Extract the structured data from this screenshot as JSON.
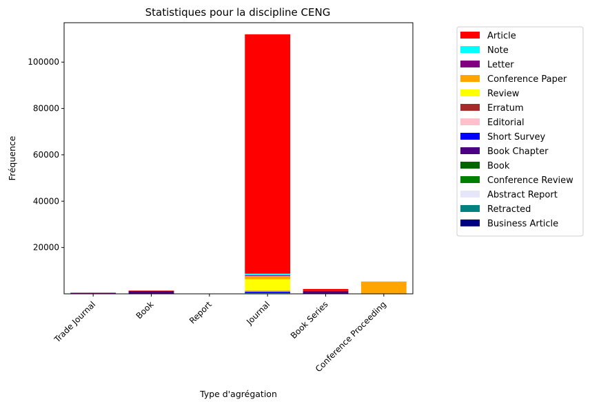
{
  "chart_data": {
    "type": "bar",
    "stacked": true,
    "title": "Statistiques pour la discipline CENG",
    "xlabel": "Type d'agrégation",
    "ylabel": "Fréquence",
    "categories": [
      "Trade Journal",
      "Book",
      "Report",
      "Journal",
      "Book Series",
      "Conference Proceeding"
    ],
    "ylim": [
      0,
      117000
    ],
    "yticks": [
      20000,
      40000,
      60000,
      80000,
      100000
    ],
    "ytick_labels": [
      "20000",
      "40000",
      "60000",
      "80000",
      "100000"
    ],
    "grid": false,
    "legend_position": "outside right",
    "series": [
      {
        "name": "Business Article",
        "color": "#000080",
        "values": [
          0,
          0,
          0,
          300,
          0,
          0
        ]
      },
      {
        "name": "Retracted",
        "color": "#008080",
        "values": [
          0,
          0,
          0,
          50,
          0,
          0
        ]
      },
      {
        "name": "Abstract Report",
        "color": "#e6e6fa",
        "values": [
          0,
          0,
          0,
          50,
          0,
          0
        ]
      },
      {
        "name": "Conference Review",
        "color": "#008000",
        "values": [
          0,
          0,
          0,
          100,
          0,
          0
        ]
      },
      {
        "name": "Book",
        "color": "#006400",
        "values": [
          0,
          100,
          0,
          0,
          100,
          0
        ]
      },
      {
        "name": "Book Chapter",
        "color": "#4b0082",
        "values": [
          0,
          1200,
          0,
          100,
          1100,
          0
        ]
      },
      {
        "name": "Short Survey",
        "color": "#0000ff",
        "values": [
          0,
          0,
          0,
          300,
          0,
          0
        ]
      },
      {
        "name": "Editorial",
        "color": "#ffc0cb",
        "values": [
          0,
          0,
          0,
          200,
          0,
          0
        ]
      },
      {
        "name": "Erratum",
        "color": "#a52a2a",
        "values": [
          0,
          0,
          0,
          200,
          100,
          0
        ]
      },
      {
        "name": "Review",
        "color": "#ffff00",
        "values": [
          0,
          0,
          0,
          5000,
          0,
          0
        ]
      },
      {
        "name": "Conference Paper",
        "color": "#ffa500",
        "values": [
          0,
          0,
          0,
          1400,
          0,
          5300
        ]
      },
      {
        "name": "Letter",
        "color": "#800080",
        "values": [
          400,
          0,
          0,
          300,
          0,
          0
        ]
      },
      {
        "name": "Note",
        "color": "#00ffff",
        "values": [
          0,
          0,
          0,
          700,
          0,
          0
        ]
      },
      {
        "name": "Article",
        "color": "#ff0000",
        "values": [
          100,
          100,
          0,
          103300,
          800,
          0
        ]
      }
    ],
    "legend_order": [
      "Article",
      "Note",
      "Letter",
      "Conference Paper",
      "Review",
      "Erratum",
      "Editorial",
      "Short Survey",
      "Book Chapter",
      "Book",
      "Conference Review",
      "Abstract Report",
      "Retracted",
      "Business Article"
    ]
  }
}
